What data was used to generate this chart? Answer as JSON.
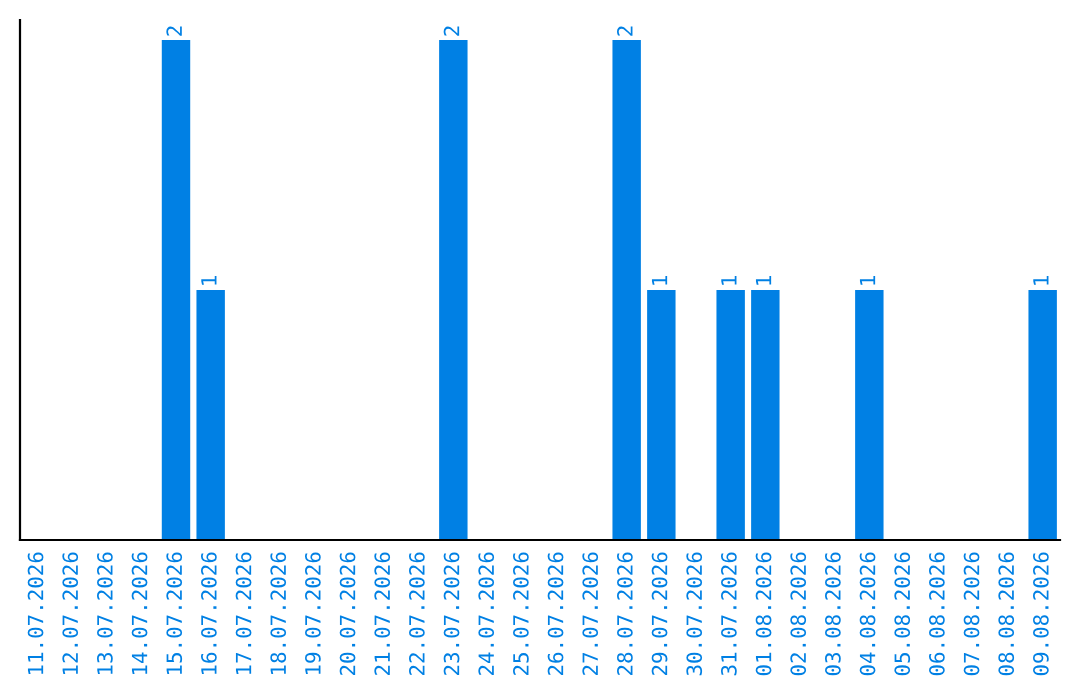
{
  "chart_data": {
    "type": "bar",
    "categories": [
      "11.07.2026",
      "12.07.2026",
      "13.07.2026",
      "14.07.2026",
      "15.07.2026",
      "16.07.2026",
      "17.07.2026",
      "18.07.2026",
      "19.07.2026",
      "20.07.2026",
      "21.07.2026",
      "22.07.2026",
      "23.07.2026",
      "24.07.2026",
      "25.07.2026",
      "26.07.2026",
      "27.07.2026",
      "28.07.2026",
      "29.07.2026",
      "30.07.2026",
      "31.07.2026",
      "01.08.2026",
      "02.08.2026",
      "03.08.2026",
      "04.08.2026",
      "05.08.2026",
      "06.08.2026",
      "07.08.2026",
      "08.08.2026",
      "09.08.2026"
    ],
    "values": [
      0,
      0,
      0,
      0,
      2,
      1,
      0,
      0,
      0,
      0,
      0,
      0,
      2,
      0,
      0,
      0,
      0,
      2,
      1,
      0,
      1,
      1,
      0,
      0,
      1,
      0,
      0,
      0,
      0,
      1
    ],
    "value_labels": [
      null,
      null,
      null,
      null,
      "2",
      "1",
      null,
      null,
      null,
      null,
      null,
      null,
      "2",
      null,
      null,
      null,
      null,
      "2",
      "1",
      null,
      "1",
      "1",
      null,
      null,
      "1",
      null,
      null,
      null,
      null,
      "1"
    ],
    "color": "#0080e4",
    "ylim": [
      0,
      2.08
    ],
    "tick_labels": "x",
    "grid": false,
    "legend": false
  }
}
